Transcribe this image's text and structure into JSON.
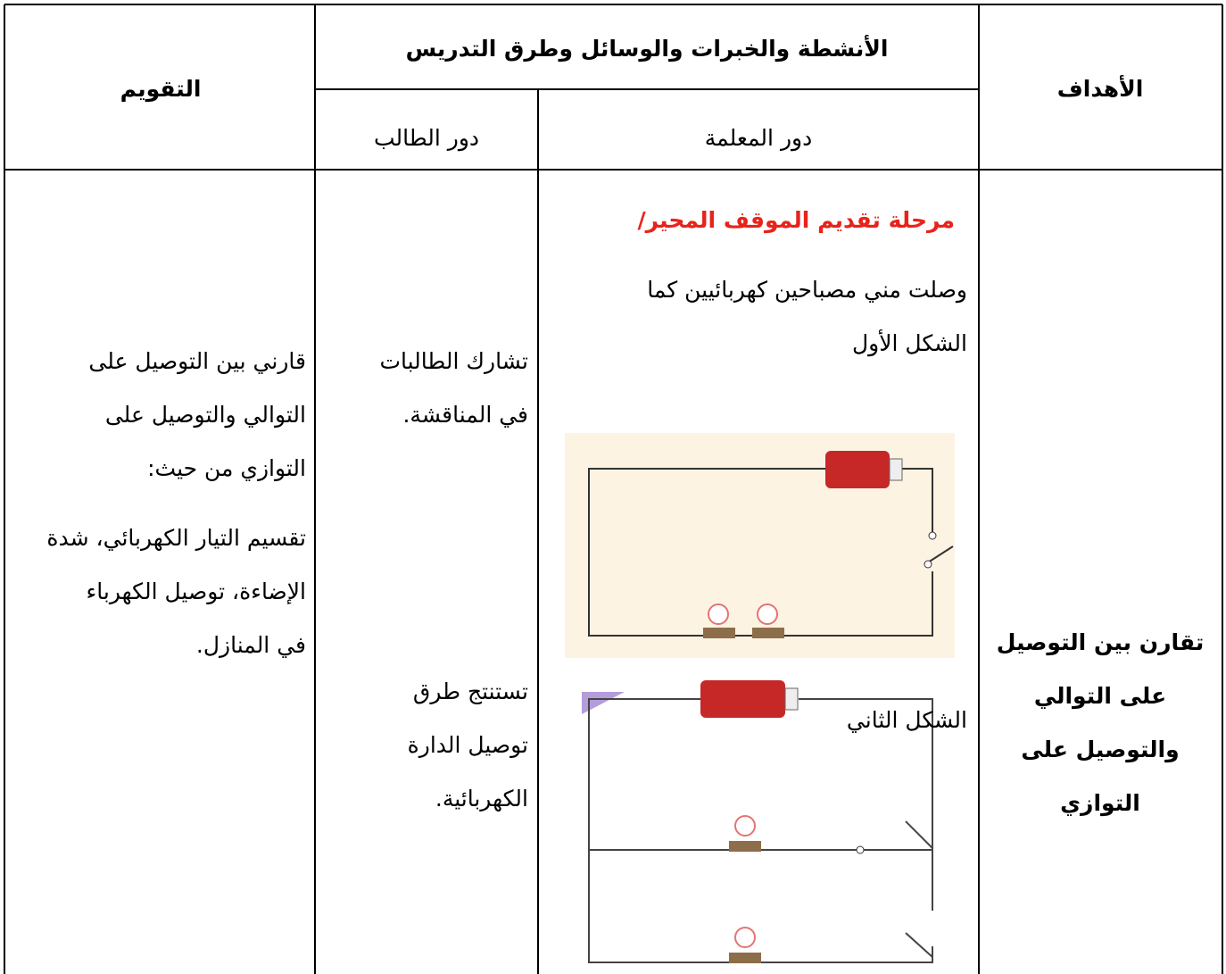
{
  "header": {
    "evaluation": "التقويم",
    "activities": "الأنشطة والخبرات والوسائل وطرق التدريس",
    "student_role": "دور الطالب",
    "teacher_role": "دور المعلمة",
    "objectives": "الأهداف"
  },
  "body": {
    "teacher": {
      "stage_title": "مرحلة تقديم الموقف المحير/",
      "intro_lines": [
        "وصلت مني مصباحين كهربائيين كما",
        "الشكل الأول"
      ],
      "figure_2_label": "الشكل الثاني"
    },
    "student": {
      "first_lines": [
        "تشارك الطالبات",
        "في المناقشة."
      ],
      "second_lines": [
        "تستنتج طرق",
        "توصيل الدارة",
        "الكهربائية."
      ]
    },
    "evaluation": {
      "question_lines": [
        "قارني بين التوصيل على",
        "التوالي والتوصيل على",
        "التوازي من حيث:"
      ],
      "criteria_lines": [
        "تقسيم التيار الكهربائي، شدة",
        "الإضاءة، توصيل الكهرباء",
        "في المنازل."
      ]
    },
    "objectives": {
      "lines": [
        "تقارن بين التوصيل",
        "على التوالي",
        "والتوصيل على",
        "التوازي"
      ]
    }
  }
}
